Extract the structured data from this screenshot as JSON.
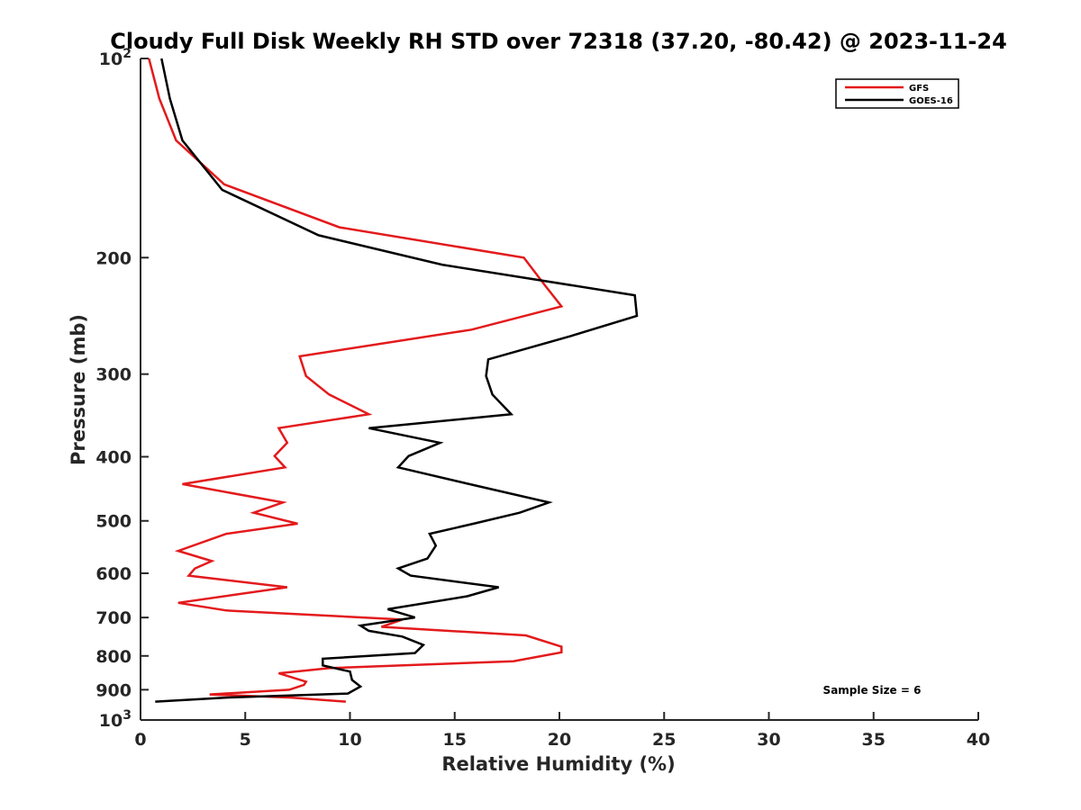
{
  "chart_data": {
    "type": "line",
    "title": "Cloudy Full Disk Weekly RH STD over 72318 (37.20, -80.42) @ 2023-11-24",
    "xlabel": "Relative Humidity (%)",
    "ylabel": "Pressure (mb)",
    "xlim": [
      0,
      40
    ],
    "ylim": [
      100,
      1000
    ],
    "yscale": "log",
    "yreverse": true,
    "xticks": [
      0,
      5,
      10,
      15,
      20,
      25,
      30,
      35,
      40
    ],
    "yticks": [
      {
        "value": 100,
        "label": "10",
        "sup": "2"
      },
      {
        "value": 200,
        "label": "200",
        "sup": ""
      },
      {
        "value": 300,
        "label": "300",
        "sup": ""
      },
      {
        "value": 400,
        "label": "400",
        "sup": ""
      },
      {
        "value": 500,
        "label": "500",
        "sup": ""
      },
      {
        "value": 600,
        "label": "600",
        "sup": ""
      },
      {
        "value": 700,
        "label": "700",
        "sup": ""
      },
      {
        "value": 800,
        "label": "800",
        "sup": ""
      },
      {
        "value": 900,
        "label": "900",
        "sup": ""
      },
      {
        "value": 1000,
        "label": "10",
        "sup": "3"
      }
    ],
    "legend_position": "top-right",
    "annotation": "Sample Size = 6",
    "series": [
      {
        "name": "GFS",
        "color": "#e31a1c",
        "points": [
          [
            0.4,
            100
          ],
          [
            0.9,
            115
          ],
          [
            1.7,
            133
          ],
          [
            4.0,
            155
          ],
          [
            9.5,
            180
          ],
          [
            18.3,
            200
          ],
          [
            19.3,
            220
          ],
          [
            20.1,
            237
          ],
          [
            15.8,
            257
          ],
          [
            7.6,
            282
          ],
          [
            7.9,
            302
          ],
          [
            9.0,
            322
          ],
          [
            10.9,
            345
          ],
          [
            6.6,
            362
          ],
          [
            7.0,
            381
          ],
          [
            6.4,
            399
          ],
          [
            6.9,
            415
          ],
          [
            2.0,
            440
          ],
          [
            6.8,
            469
          ],
          [
            5.4,
            486
          ],
          [
            7.5,
            505
          ],
          [
            4.1,
            523
          ],
          [
            1.8,
            555
          ],
          [
            3.4,
            575
          ],
          [
            2.6,
            590
          ],
          [
            2.3,
            605
          ],
          [
            7.0,
            630
          ],
          [
            1.8,
            665
          ],
          [
            4.1,
            683
          ],
          [
            12.5,
            705
          ],
          [
            11.5,
            723
          ],
          [
            18.4,
            745
          ],
          [
            20.1,
            775
          ],
          [
            20.1,
            790
          ],
          [
            17.8,
            815
          ],
          [
            9.0,
            835
          ],
          [
            6.6,
            850
          ],
          [
            7.9,
            875
          ],
          [
            7.8,
            885
          ],
          [
            7.1,
            900
          ],
          [
            3.3,
            915
          ],
          [
            7.2,
            925
          ],
          [
            9.8,
            938
          ]
        ]
      },
      {
        "name": "GOES-16",
        "color": "#000000",
        "points": [
          [
            1.0,
            100
          ],
          [
            1.4,
            115
          ],
          [
            2.0,
            133
          ],
          [
            3.9,
            158
          ],
          [
            8.5,
            185
          ],
          [
            14.4,
            205
          ],
          [
            23.6,
            228
          ],
          [
            23.7,
            245
          ],
          [
            20.5,
            263
          ],
          [
            16.6,
            285
          ],
          [
            16.5,
            302
          ],
          [
            16.8,
            322
          ],
          [
            17.7,
            345
          ],
          [
            10.9,
            362
          ],
          [
            14.3,
            381
          ],
          [
            12.8,
            399
          ],
          [
            12.3,
            415
          ],
          [
            15.7,
            440
          ],
          [
            19.5,
            469
          ],
          [
            18.1,
            486
          ],
          [
            15.9,
            505
          ],
          [
            13.8,
            523
          ],
          [
            14.1,
            545
          ],
          [
            13.7,
            570
          ],
          [
            12.3,
            590
          ],
          [
            12.9,
            605
          ],
          [
            17.1,
            630
          ],
          [
            15.6,
            650
          ],
          [
            11.8,
            680
          ],
          [
            13.1,
            700
          ],
          [
            10.5,
            720
          ],
          [
            10.9,
            733
          ],
          [
            12.5,
            748
          ],
          [
            13.5,
            770
          ],
          [
            13.1,
            792
          ],
          [
            8.7,
            808
          ],
          [
            8.7,
            827
          ],
          [
            10.0,
            845
          ],
          [
            10.1,
            870
          ],
          [
            10.5,
            890
          ],
          [
            9.9,
            912
          ],
          [
            4.1,
            925
          ],
          [
            0.7,
            938
          ]
        ]
      }
    ]
  }
}
